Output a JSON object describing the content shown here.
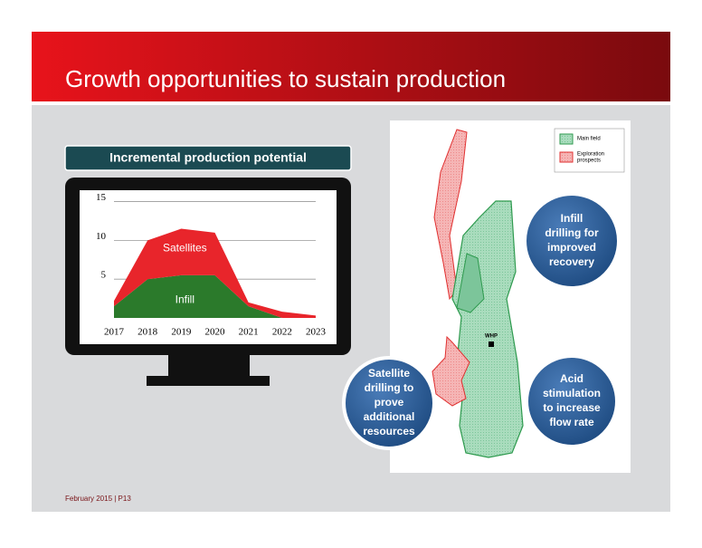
{
  "header": {
    "title": "Growth opportunities to sustain production"
  },
  "chart_data": {
    "type": "area",
    "stacked": true,
    "title": "Incremental production potential",
    "categories": [
      "2017",
      "2018",
      "2019",
      "2020",
      "2021",
      "2022",
      "2023"
    ],
    "series": [
      {
        "name": "Infill",
        "color": "#2b7a2b",
        "values": [
          1.5,
          5,
          5.5,
          5.5,
          1.5,
          0,
          0
        ]
      },
      {
        "name": "Satellites",
        "color": "#e8252b",
        "values": [
          0.7,
          5,
          6,
          5.5,
          0.5,
          0.8,
          0.3
        ]
      }
    ],
    "ylim": [
      0,
      16
    ],
    "yticks": [
      5,
      10,
      15
    ],
    "grid": true
  },
  "map": {
    "legend": [
      {
        "lines": [
          "Main field"
        ]
      },
      {
        "lines": [
          "Exploration",
          "prospects"
        ]
      }
    ],
    "marker": "WHP"
  },
  "callouts": [
    {
      "lines": [
        "Infill",
        "drilling for",
        "improved",
        "recovery"
      ]
    },
    {
      "lines": [
        "Satellite",
        "drilling to",
        "prove",
        "additional",
        "resources"
      ]
    },
    {
      "lines": [
        "Acid",
        "stimulation",
        "to increase",
        "flow rate"
      ]
    }
  ],
  "footer": "February 2015 | P13"
}
